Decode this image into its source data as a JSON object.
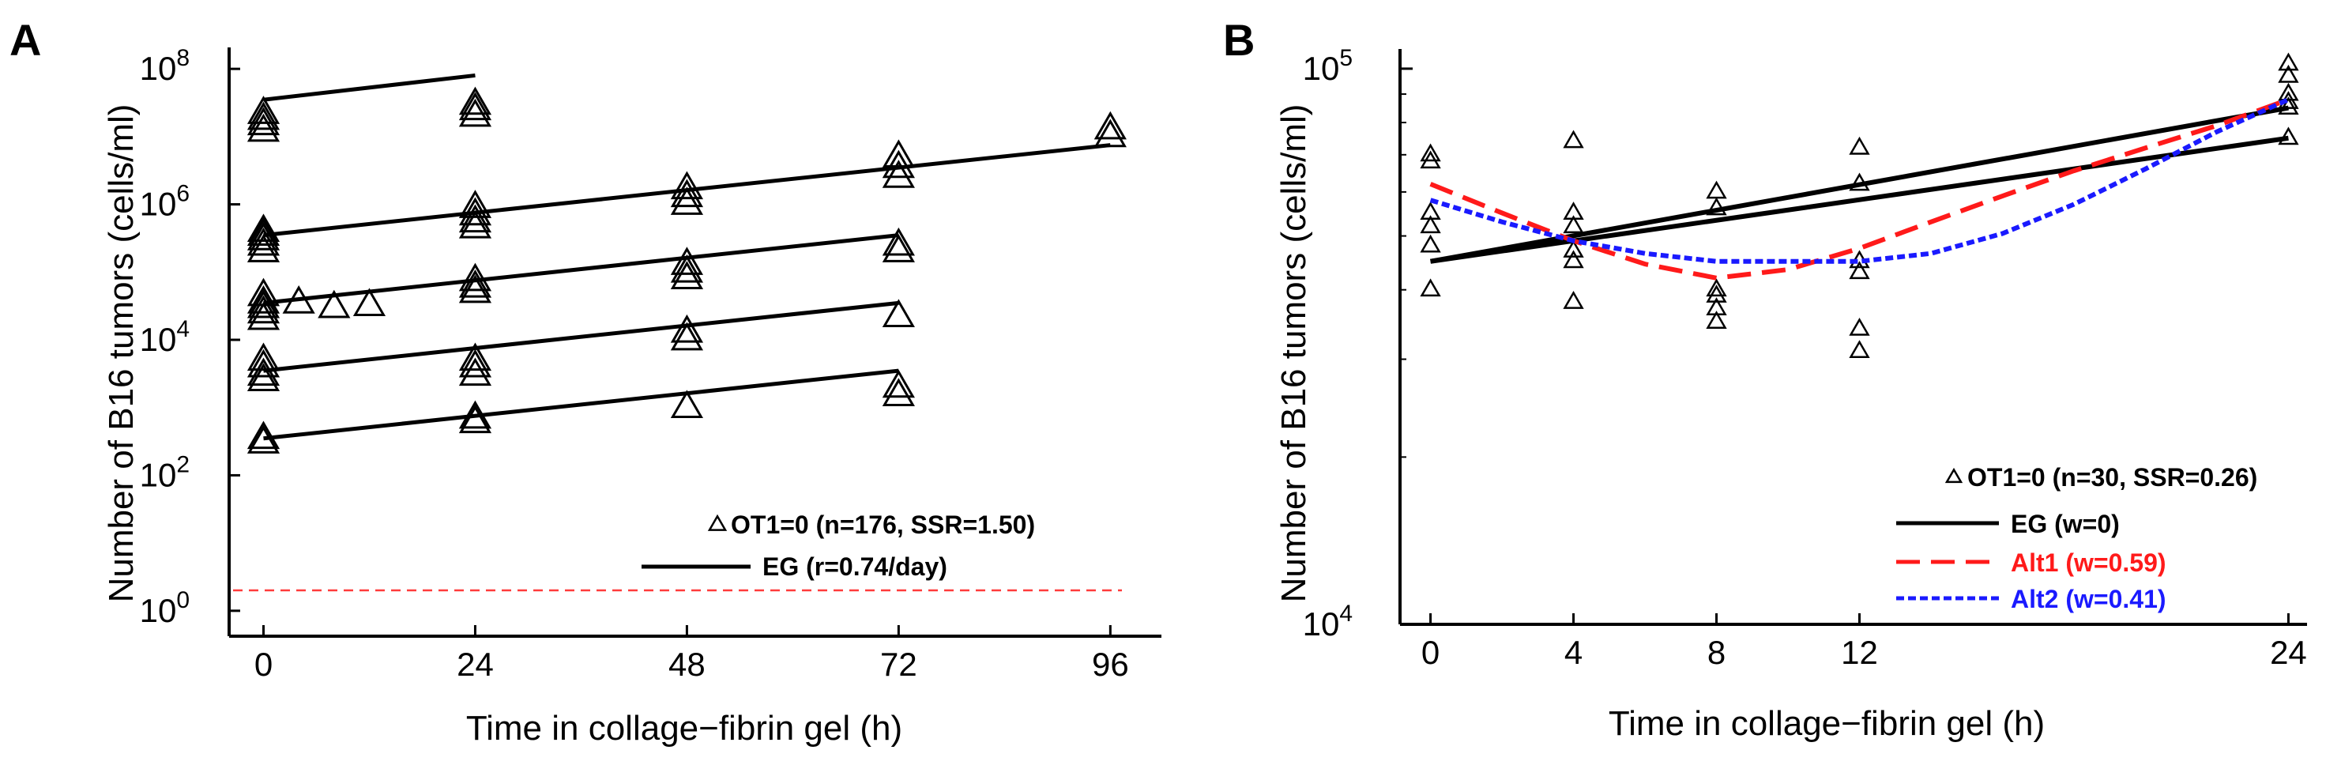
{
  "chart_data": [
    {
      "panel_label": "A",
      "type": "scatter",
      "xlabel": "Time in collage−fibrin gel (h)",
      "ylabel": "Number of B16 tumors (cells/ml)",
      "xlim": [
        -3,
        100
      ],
      "ylim_log10": [
        -0.2,
        8.2
      ],
      "yscale": "log",
      "x_ticks": [
        0,
        24,
        48,
        72,
        96
      ],
      "x_tick_labels": [
        "0",
        "24",
        "48",
        "72",
        "96"
      ],
      "y_ticks_log10": [
        0,
        2,
        4,
        6,
        8
      ],
      "y_tick_labels": [
        {
          "base": "10",
          "exp": "0"
        },
        {
          "base": "10",
          "exp": "2"
        },
        {
          "base": "10",
          "exp": "4"
        },
        {
          "base": "10",
          "exp": "6"
        },
        {
          "base": "10",
          "exp": "8"
        }
      ],
      "legend": {
        "placement": "bottom-right",
        "entries": [
          {
            "marker": "triangle",
            "label": "OT1=0 (n=176, SSR=1.50)"
          },
          {
            "marker": "line",
            "label": "EG (r=0.74/day)"
          }
        ]
      },
      "reference_line": {
        "y": 2,
        "color": "#ff3b3b",
        "style": "dashed"
      },
      "fit_lines": [
        {
          "x": [
            0,
            24
          ],
          "y": [
            35000000,
            80000000
          ]
        },
        {
          "x": [
            0,
            96
          ],
          "y": [
            350000,
            7500000
          ]
        },
        {
          "x": [
            0,
            72
          ],
          "y": [
            35000,
            350000
          ]
        },
        {
          "x": [
            0,
            72
          ],
          "y": [
            3500,
            35000
          ]
        },
        {
          "x": [
            0,
            72
          ],
          "y": [
            350,
            3500
          ]
        }
      ],
      "series": [
        {
          "name": "OT1=0",
          "marker": "triangle",
          "x": [
            0,
            0,
            0,
            0,
            24,
            24,
            24,
            0,
            0,
            0,
            0,
            0,
            24,
            24,
            24,
            24,
            48,
            48,
            48,
            72,
            72,
            72,
            96,
            96,
            0,
            0,
            0,
            0,
            0,
            4,
            8,
            12,
            24,
            24,
            24,
            48,
            48,
            48,
            72,
            72,
            0,
            0,
            0,
            0,
            24,
            24,
            24,
            48,
            48,
            72,
            0,
            0,
            24,
            24,
            48,
            72,
            72
          ],
          "y": [
            12000000,
            15000000,
            18000000,
            22000000,
            20000000,
            25000000,
            30000000,
            200000,
            250000,
            300000,
            350000,
            400000,
            450000,
            550000,
            700000,
            900000,
            1000000,
            1300000,
            1700000,
            2500000,
            3500000,
            5000000,
            10000000,
            13000000,
            20000,
            25000,
            30000,
            35000,
            45000,
            35000,
            30000,
            32000,
            50000,
            60000,
            75000,
            80000,
            100000,
            130000,
            200000,
            250000,
            2500,
            3000,
            4000,
            5000,
            3000,
            4000,
            5000,
            10000,
            13000,
            22000,
            300,
            350,
            600,
            700,
            1000,
            1500,
            2000
          ]
        }
      ]
    },
    {
      "panel_label": "B",
      "type": "line",
      "xlabel": "Time in collage−fibrin gel (h)",
      "ylabel": "Number of B16 tumors (cells/ml)",
      "xlim": [
        -0.3,
        24.3
      ],
      "ylim": [
        10000,
        105000
      ],
      "yscale": "log",
      "x_ticks": [
        0,
        4,
        8,
        12,
        24
      ],
      "x_tick_labels": [
        "0",
        "4",
        "8",
        "12",
        "24"
      ],
      "y_ticks": [
        10000,
        100000
      ],
      "y_tick_labels": [
        {
          "base": "10",
          "exp": "4"
        },
        {
          "base": "10",
          "exp": "5"
        }
      ],
      "legend": {
        "placement": "bottom-right",
        "entries": [
          {
            "marker": "triangle",
            "label": "OT1=0 (n=30, SSR=0.26)",
            "color": "#000000"
          },
          {
            "marker": "line",
            "label": "EG (w=0)",
            "color": "#000000"
          },
          {
            "marker": "dashed",
            "label": "Alt1 (w=0.59)",
            "color": "#ff1a1a"
          },
          {
            "marker": "dotted",
            "label": "Alt2 (w=0.41)",
            "color": "#1a1aff"
          }
        ]
      },
      "data_points": {
        "x": [
          0,
          0,
          0,
          0,
          0,
          0,
          4,
          4,
          4,
          4,
          4,
          4,
          8,
          8,
          8,
          8,
          8,
          8,
          12,
          12,
          12,
          12,
          12,
          12,
          24,
          24,
          24,
          24,
          24,
          24
        ],
        "y": [
          68000,
          70000,
          55000,
          52000,
          40000,
          48000,
          74000,
          55000,
          52000,
          47000,
          45000,
          38000,
          60000,
          56000,
          40000,
          39000,
          37000,
          35000,
          72000,
          62000,
          45000,
          43000,
          34000,
          31000,
          102000,
          97000,
          90000,
          87000,
          85000,
          75000
        ]
      },
      "series": [
        {
          "name": "EG (w=0)",
          "color": "#000000",
          "style": "solid",
          "x": [
            0,
            24
          ],
          "y": [
            45000,
            85000
          ]
        },
        {
          "name": "EG (w=0)",
          "color": "#000000",
          "style": "solid",
          "x": [
            0,
            24
          ],
          "y": [
            45000,
            75000
          ]
        },
        {
          "name": "Alt1 (w=0.59)",
          "color": "#ff1a1a",
          "style": "dashed",
          "x": [
            0,
            2,
            4,
            6,
            8,
            10,
            12,
            14,
            16,
            18,
            20,
            22,
            24
          ],
          "y": [
            62000,
            55000,
            49000,
            44500,
            42000,
            43500,
            47500,
            53000,
            59000,
            65500,
            72000,
            79000,
            88000
          ]
        },
        {
          "name": "Alt2 (w=0.41)",
          "color": "#1a1aff",
          "style": "dotted",
          "x": [
            0,
            2,
            4,
            6,
            8,
            10,
            12,
            14,
            16,
            18,
            20,
            22,
            24
          ],
          "y": [
            58000,
            53000,
            49000,
            46500,
            45000,
            45000,
            45000,
            46500,
            50500,
            57000,
            66000,
            77000,
            88000
          ]
        }
      ]
    }
  ]
}
